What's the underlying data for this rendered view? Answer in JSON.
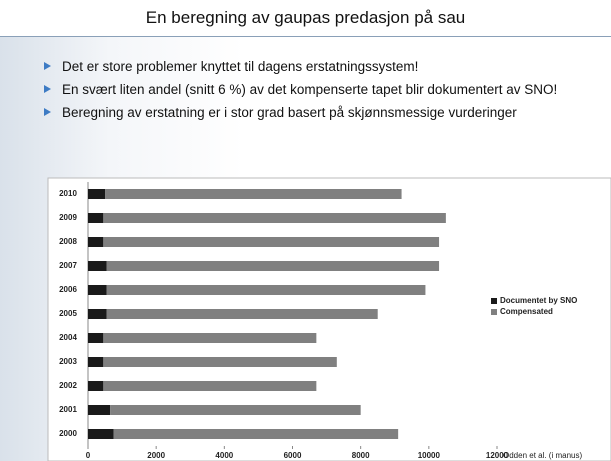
{
  "slide": {
    "title": "En beregning av gaupas predasjon på sau",
    "bullets": [
      "Det er store problemer knyttet til dagens erstatningssystem!",
      "En svært liten andel (snitt 6 %) av det kompenserte tapet blir dokumentert av SNO!",
      "Beregning av erstatning er i stor grad basert på skjønnsmessige vurderinger"
    ]
  },
  "chart_data": {
    "type": "stacked-barh",
    "categories": [
      "2010",
      "2009",
      "2008",
      "2007",
      "2006",
      "2005",
      "2004",
      "2003",
      "2002",
      "2001",
      "2000"
    ],
    "series": [
      {
        "name": "Documentet by SNO",
        "color": "#1a1a1a",
        "values": [
          500,
          450,
          450,
          550,
          550,
          550,
          450,
          450,
          450,
          650,
          750
        ]
      },
      {
        "name": "Compensated",
        "color": "#808080",
        "values": [
          8700,
          10050,
          9850,
          9750,
          9350,
          7950,
          6250,
          6850,
          6250,
          7350,
          8350
        ]
      }
    ],
    "xlim": [
      0,
      12000
    ],
    "xticks": [
      0,
      2000,
      4000,
      6000,
      8000,
      10000,
      12000
    ],
    "legend": "right",
    "annotation": "Odden et al. (i manus)"
  }
}
